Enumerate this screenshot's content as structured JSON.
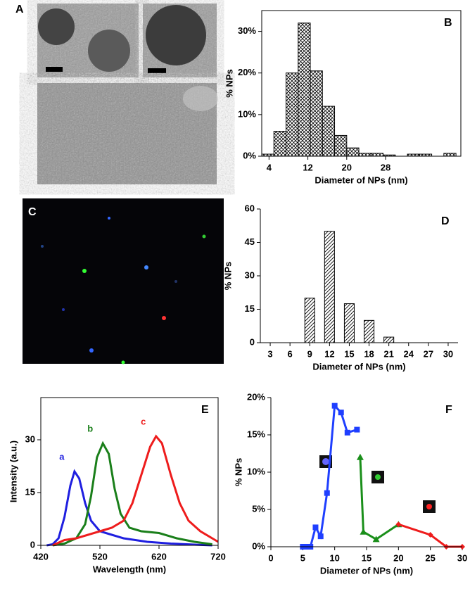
{
  "panels": [
    {
      "label": "A"
    },
    {
      "label": "C"
    }
  ],
  "chart_data": [
    {
      "type": "histogram",
      "panel": "B",
      "x_label": "Diameter of NPs (nm)",
      "y_label": "% NPs",
      "bins": [
        2.5,
        5,
        7.5,
        10,
        12.5,
        15,
        17.5,
        20,
        22.5,
        25,
        27.5,
        30,
        32.5,
        35,
        37.5,
        40,
        42.5
      ],
      "values": [
        0.5,
        6,
        20,
        32,
        20.5,
        12,
        5,
        2,
        0.7,
        0.7,
        0.3,
        0,
        0.5,
        0.5,
        0,
        0.7
      ],
      "color": "#ffffff",
      "pattern": "crosshatch",
      "frame": true,
      "xlim": [
        2.5,
        43.5
      ],
      "xticks": [
        4,
        12,
        20,
        28
      ],
      "ylim": [
        0,
        35
      ],
      "yticks": [
        {
          "value": 0,
          "label": "0%"
        },
        {
          "value": 10,
          "label": "10%"
        },
        {
          "value": 20,
          "label": "20%"
        },
        {
          "value": 30,
          "label": "30%"
        }
      ]
    },
    {
      "type": "bar",
      "panel": "D",
      "x_label": "Diameter of NPs (nm)",
      "y_label": "% NPs",
      "x": [
        9,
        12,
        15,
        18,
        21
      ],
      "values": [
        20,
        50,
        17.5,
        10,
        2.5
      ],
      "color": "#ffffff",
      "pattern": "hatch",
      "frame": false,
      "xlim": [
        1.5,
        31.5
      ],
      "xticks": [
        3,
        6,
        9,
        12,
        15,
        18,
        21,
        24,
        27,
        30
      ],
      "ylim": [
        0,
        60
      ],
      "yticks": [
        0,
        15,
        30,
        45,
        60
      ]
    },
    {
      "type": "line",
      "panel": "E",
      "x_label": "Wavelength (nm)",
      "y_label": "Intensity (a.u.)",
      "frame": true,
      "xlim": [
        420,
        720
      ],
      "xticks": [
        420,
        520,
        620,
        720
      ],
      "ylim": [
        0,
        42
      ],
      "yticks": [
        0,
        15,
        30
      ],
      "series": [
        {
          "name": "a",
          "color": "#1f1fe0",
          "x": [
            430,
            440,
            450,
            460,
            470,
            477,
            485,
            495,
            505,
            520,
            540,
            560,
            580,
            600,
            640,
            680,
            710
          ],
          "values": [
            0,
            0.3,
            2,
            8,
            17,
            21,
            19,
            12,
            7,
            4,
            3,
            2,
            1.5,
            1,
            0.5,
            0.2,
            0
          ]
        },
        {
          "name": "b",
          "color": "#1a7f1a",
          "x": [
            440,
            460,
            480,
            495,
            505,
            515,
            525,
            535,
            545,
            555,
            570,
            590,
            620,
            650,
            680,
            710
          ],
          "values": [
            0,
            0.5,
            2,
            6,
            14,
            25,
            29,
            26,
            16,
            9,
            5,
            4,
            3.5,
            2,
            1,
            0.3
          ]
        },
        {
          "name": "c",
          "color": "#ee1c1c",
          "x": [
            440,
            460,
            480,
            500,
            520,
            540,
            560,
            575,
            590,
            605,
            615,
            625,
            640,
            655,
            670,
            690,
            710,
            720
          ],
          "values": [
            0,
            1.5,
            2,
            3,
            4,
            5,
            7,
            12,
            20,
            28,
            31,
            29,
            20,
            12,
            7,
            4,
            2,
            1
          ]
        }
      ]
    },
    {
      "type": "line",
      "panel": "F",
      "x_label": "Diameter of NPs (nm)",
      "y_label": "% NPs",
      "frame": false,
      "xlim": [
        0,
        30
      ],
      "xticks": [
        0,
        5,
        10,
        15,
        20,
        25,
        30
      ],
      "ylim": [
        0,
        20
      ],
      "yticks": [
        {
          "value": 0,
          "label": "0%"
        },
        {
          "value": 5,
          "label": "5%"
        },
        {
          "value": 10,
          "label": "10%"
        },
        {
          "value": 15,
          "label": "15%"
        },
        {
          "value": 20,
          "label": "20%"
        }
      ],
      "series": [
        {
          "color": "#1f3fff",
          "marker": "square",
          "x": [
            5,
            5.8,
            6.2,
            7,
            7.8,
            8.8,
            10,
            11,
            12,
            13.5
          ],
          "values": [
            0,
            0,
            0,
            2.6,
            1.4,
            7.2,
            18.9,
            18,
            15.3,
            15.7
          ]
        },
        {
          "color": "#1a8f1a",
          "marker": "triangle",
          "x": [
            14,
            14.5,
            16.5,
            20
          ],
          "values": [
            12,
            2,
            1,
            3
          ]
        },
        {
          "color": "#ee1c1c",
          "marker": "diamond",
          "x": [
            20,
            25,
            27.5,
            30
          ],
          "values": [
            3,
            1.6,
            0,
            0
          ]
        }
      ]
    }
  ]
}
